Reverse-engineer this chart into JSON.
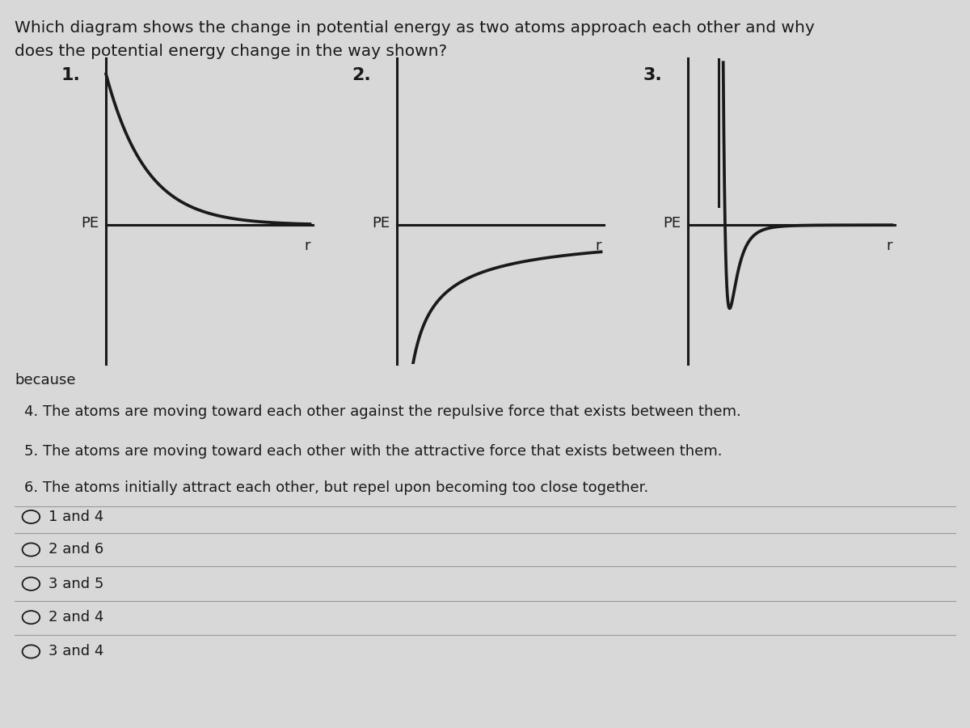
{
  "title_line1": "Which diagram shows the change in potential energy as two atoms approach each other and why",
  "title_line2": "does the potential energy change in the way shown?",
  "bg_color": "#d8d8d8",
  "text_color": "#1a1a1a",
  "line_color": "#1a1a1a",
  "because_label": "because",
  "reason4": "4. The atoms are moving toward each other against the repulsive force that exists between them.",
  "reason5": "5. The atoms are moving toward each other with the attractive force that exists between them.",
  "reason6": "6. The atoms initially attract each other, but repel upon becoming too close together.",
  "choices": [
    "1 and 4",
    "2 and 6",
    "3 and 5",
    "2 and 4",
    "3 and 4"
  ],
  "diagram_labels": [
    "1.",
    "2.",
    "3."
  ],
  "pe_label": "PE",
  "r_label": "r",
  "title_fontsize": 14.5,
  "label_fontsize": 13,
  "reason_fontsize": 13,
  "choice_fontsize": 13,
  "diag_num_fontsize": 16
}
